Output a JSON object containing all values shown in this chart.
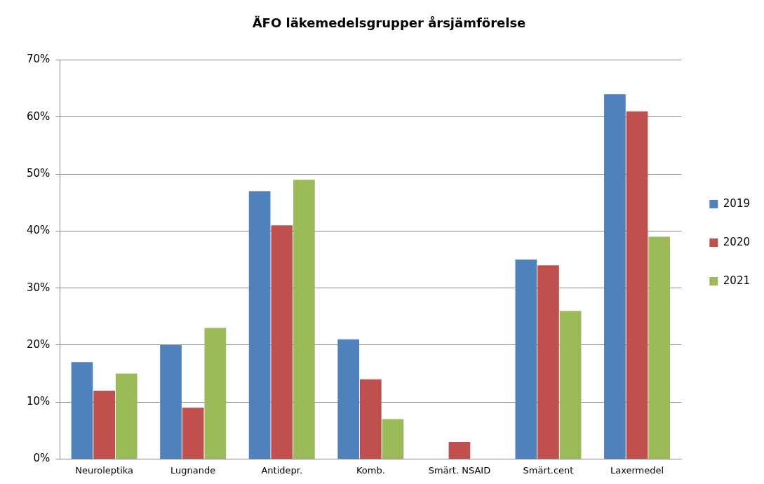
{
  "chart_data": {
    "type": "bar",
    "title": "ÄFO läkemedelsgrupper årsjämförelse",
    "categories": [
      "Neuroleptika",
      "Lugnande",
      "Antidepr.",
      "Komb.",
      "Smärt. NSAID",
      "Smärt.cent",
      "Laxermedel"
    ],
    "series": [
      {
        "name": "2019",
        "color": "#4f81bd",
        "values": [
          17,
          20,
          47,
          21,
          0,
          35,
          64
        ]
      },
      {
        "name": "2020",
        "color": "#c0504d",
        "values": [
          12,
          9,
          41,
          14,
          3,
          34,
          61
        ]
      },
      {
        "name": "2021",
        "color": "#9bbb59",
        "values": [
          15,
          23,
          49,
          7,
          0,
          26,
          39
        ]
      }
    ],
    "ylim": [
      0,
      70
    ],
    "yticks": [
      {
        "value": 0,
        "label": "0%"
      },
      {
        "value": 10,
        "label": "10%"
      },
      {
        "value": 20,
        "label": "20%"
      },
      {
        "value": 30,
        "label": "30%"
      },
      {
        "value": 40,
        "label": "40%"
      },
      {
        "value": 50,
        "label": "50%"
      },
      {
        "value": 60,
        "label": "60%"
      },
      {
        "value": 70,
        "label": "70%"
      }
    ],
    "grid": "y",
    "legend": "right"
  }
}
